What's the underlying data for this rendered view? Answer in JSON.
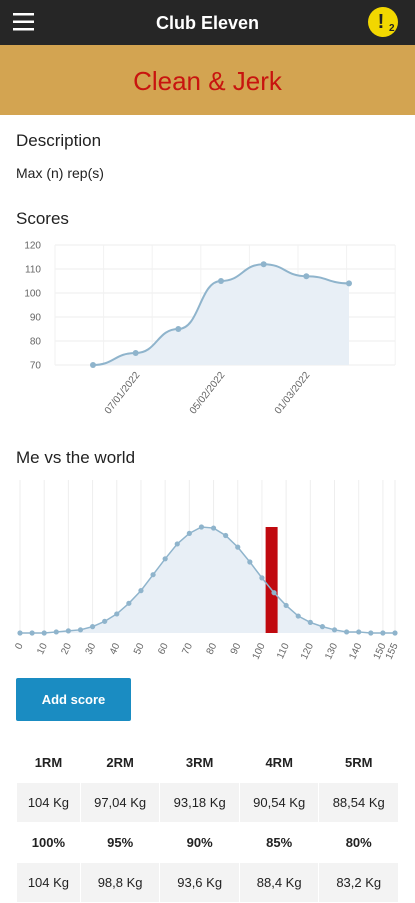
{
  "header": {
    "title": "Club Eleven",
    "alert_icon": "!",
    "alert_count": "2"
  },
  "page_title": "Clean & Jerk",
  "description": {
    "heading": "Description",
    "text": "Max (n) rep(s)"
  },
  "scores": {
    "heading": "Scores",
    "chart": {
      "type": "line",
      "categories": [
        null,
        null,
        null,
        null,
        null,
        null,
        null
      ],
      "values": [
        70,
        75,
        85,
        105,
        112,
        107,
        104
      ],
      "xtick_labels": [
        "07/01/2022",
        "05/02/2022",
        "01/03/2022"
      ],
      "ylim": [
        70,
        120
      ],
      "yticks": [
        70,
        80,
        90,
        100,
        110,
        120
      ],
      "grid": true,
      "color": "#8fb4cc"
    }
  },
  "world": {
    "heading": "Me vs the world",
    "chart": {
      "type": "line",
      "x": [
        0,
        5,
        10,
        15,
        20,
        25,
        30,
        35,
        40,
        45,
        50,
        55,
        60,
        65,
        70,
        75,
        80,
        85,
        90,
        95,
        100,
        105,
        110,
        115,
        120,
        125,
        130,
        135,
        140,
        145,
        150,
        155
      ],
      "values": [
        0,
        0,
        0,
        1,
        2,
        3,
        6,
        11,
        18,
        28,
        40,
        55,
        70,
        84,
        94,
        100,
        99,
        92,
        81,
        67,
        52,
        38,
        26,
        16,
        10,
        6,
        3,
        1,
        1,
        0,
        0,
        0
      ],
      "xlim": [
        0,
        155
      ],
      "xticks": [
        0,
        10,
        20,
        30,
        40,
        50,
        60,
        70,
        80,
        90,
        100,
        110,
        120,
        130,
        140,
        150,
        155
      ],
      "ylim": [
        0,
        100
      ],
      "marker_x": 104,
      "marker_color": "#c0090f",
      "color": "#8fb4cc",
      "grid": true
    }
  },
  "button": "Add score",
  "table": {
    "rows": [
      [
        "1RM",
        "2RM",
        "3RM",
        "4RM",
        "5RM"
      ],
      [
        "104 Kg",
        "97,04 Kg",
        "93,18 Kg",
        "90,54 Kg",
        "88,54 Kg"
      ],
      [
        "100%",
        "95%",
        "90%",
        "85%",
        "80%"
      ],
      [
        "104 Kg",
        "98,8 Kg",
        "93,6 Kg",
        "88,4 Kg",
        "83,2 Kg"
      ]
    ]
  }
}
